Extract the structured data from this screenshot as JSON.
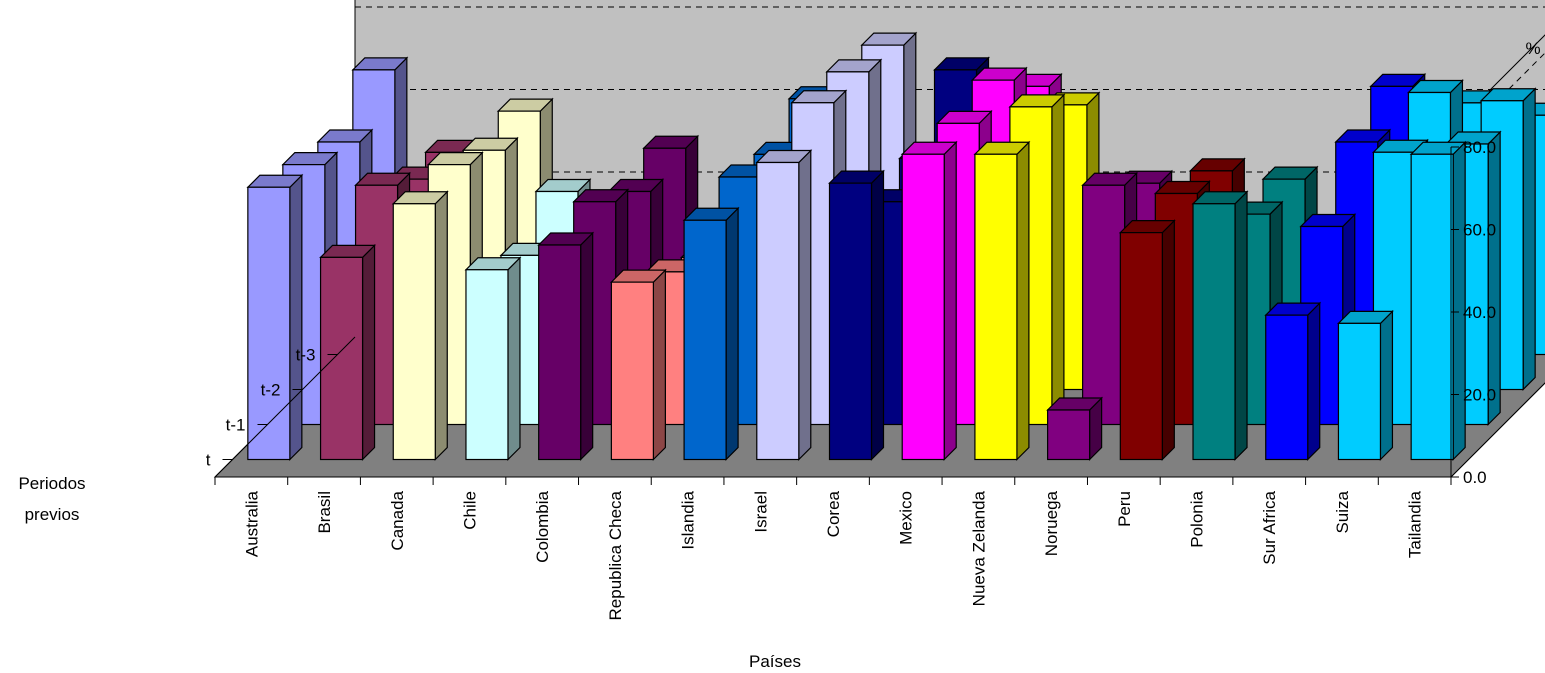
{
  "chart_data": {
    "type": "bar",
    "subtype": "3d-bar",
    "title": "",
    "xlabel": "Países",
    "ylabel": "%",
    "zlabel_line1": "Periodos",
    "zlabel_line2": "previos",
    "ylim": [
      0,
      80
    ],
    "yticks": [
      "0.0",
      "20.0",
      "40.0",
      "60.0",
      "80.0"
    ],
    "grid": true,
    "legend": "none",
    "categories": [
      "Australia",
      "Brasil",
      "Canada",
      "Chile",
      "Colombia",
      "Republica Checa",
      "Islandia",
      "Israel",
      "Corea",
      "Mexico",
      "Nueva Zelanda",
      "Noruega",
      "Peru",
      "Polonia",
      "Sur Africa",
      "Suiza",
      "Tailandia"
    ],
    "periods": [
      "t-3",
      "t-2",
      "t-1",
      "t"
    ],
    "colors": [
      "#9999ff",
      "#993366",
      "#ffffcc",
      "#ccffff",
      "#660066",
      "#ff8080",
      "#0066cc",
      "#ccccff",
      "#000080",
      "#ff00ff",
      "#ffff00",
      "#800080",
      "#800000",
      "#008080",
      "#0000ff",
      "#00ccff",
      "#00ccff"
    ],
    "series": [
      {
        "period": "t-3",
        "values": [
          69,
          49,
          59,
          34,
          50,
          30,
          62,
          75,
          69,
          65,
          36,
          24,
          29,
          15,
          65,
          61,
          58
        ]
      },
      {
        "period": "t-2",
        "values": [
          60,
          51,
          58,
          48,
          48,
          32,
          57,
          77,
          56,
          75,
          69,
          50,
          53,
          51,
          60,
          72,
          70
        ]
      },
      {
        "period": "t-1",
        "values": [
          63,
          58,
          63,
          41,
          54,
          37,
          60,
          78,
          54,
          73,
          77,
          58,
          56,
          51,
          48,
          66,
          68
        ]
      },
      {
        "period": "t",
        "values": [
          66,
          49,
          62,
          46,
          52,
          43,
          58,
          72,
          67,
          74,
          74,
          12,
          55,
          62,
          35,
          33,
          74
        ]
      }
    ]
  }
}
